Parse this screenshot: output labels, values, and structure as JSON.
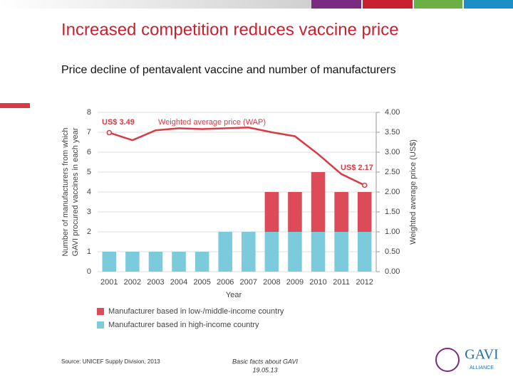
{
  "slide": {
    "title": "Increased competition reduces vaccine price",
    "subtitle": "Price decline of pentavalent vaccine and number of manufacturers",
    "source": "Source: UNICEF Supply Division, 2013",
    "footer": [
      "Basic facts about GAVI",
      "19.05.13"
    ],
    "logo": [
      "GAVI",
      "ALLIANCE"
    ]
  },
  "chart_data": {
    "type": "bar",
    "stacked": true,
    "x_label": "Year",
    "y_label": [
      "Number of manufacturers from which",
      "GAVI procured vaccines in each year"
    ],
    "y2_label": "Weighted average price (US$)",
    "categories": [
      "2001",
      "2002",
      "2003",
      "2004",
      "2005",
      "2006",
      "2007",
      "2008",
      "2009",
      "2010",
      "2011",
      "2012"
    ],
    "series": [
      {
        "name": "Manufacturer based in high-income country",
        "color": "#7ccbdc",
        "values": [
          1,
          1,
          1,
          1,
          1,
          2,
          2,
          2,
          2,
          2,
          2,
          2
        ]
      },
      {
        "name": "Manufacturer based in low-/middle-income country",
        "color": "#dc4b57",
        "values": [
          0,
          0,
          0,
          0,
          0,
          0,
          0,
          2,
          2,
          3,
          2,
          2
        ]
      },
      {
        "name": "Weighted average price (WAP)",
        "color": "#d93a45",
        "axis": "y2",
        "type": "line",
        "values": [
          3.49,
          3.3,
          3.55,
          3.6,
          3.58,
          3.6,
          3.62,
          3.5,
          3.4,
          2.95,
          2.45,
          2.17
        ]
      }
    ],
    "annotations": [
      "US$ 3.49",
      "US$ 2.17"
    ],
    "ylim": [
      0,
      8
    ],
    "yticks": [
      0,
      1,
      2,
      3,
      4,
      5,
      6,
      7,
      8
    ],
    "y2lim": [
      0,
      4
    ],
    "y2ticks": [
      {
        "value": 0,
        "label": "0.00"
      },
      {
        "value": 0.5,
        "label": "0.50"
      },
      {
        "value": 1,
        "label": "1.00"
      },
      {
        "value": 1.5,
        "label": "1.50"
      },
      {
        "value": 2,
        "label": "2.00"
      },
      {
        "value": 2.5,
        "label": "2.50"
      },
      {
        "value": 3,
        "label": "3.00"
      },
      {
        "value": 3.5,
        "label": "3.50"
      },
      {
        "value": 4,
        "label": "4.00"
      }
    ],
    "grid": true
  }
}
